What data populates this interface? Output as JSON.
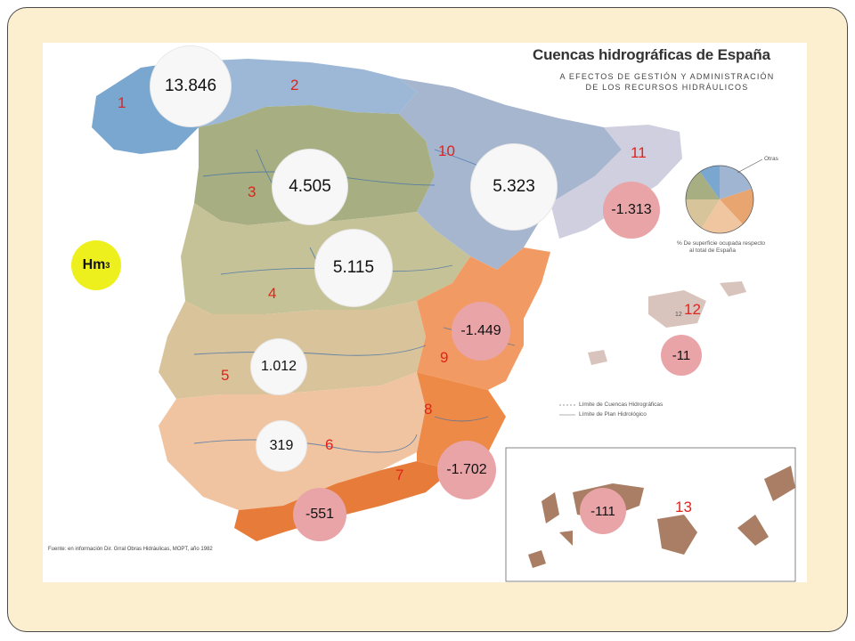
{
  "map": {
    "title": "Cuencas hidrográficas de España",
    "subtitle_line1": "A EFECTOS DE GESTIÓN Y ADMINISTRACIÓN",
    "subtitle_line2": "DE LOS RECURSOS HIDRÁULICOS",
    "unit_label": "Hm",
    "unit_exponent": "3",
    "basin_numbers": [
      "1",
      "2",
      "3",
      "4",
      "5",
      "6",
      "7",
      "8",
      "9",
      "10",
      "11",
      "12",
      "13"
    ],
    "island_label": "12",
    "values": {
      "b1": "13.846",
      "b3": "4.505",
      "b10": "5.323",
      "b11": "-1.313",
      "b4": "5.115",
      "b9": "-1.449",
      "b12": "-11",
      "b5": "1.012",
      "b6": "319",
      "b7": "-1.702",
      "b8": "-551",
      "b13": "-111"
    },
    "pie_legend": {
      "label": "Otras",
      "caption_line1": "% De superficie ocupada respecto",
      "caption_line2": "al total de España"
    },
    "legend": {
      "line1": "Límite de Cuencas Hidrográficas",
      "line2": "Límite de Plan Hidrológico"
    },
    "source": "Fuente: en información Dir. Grral Obras Hidráulicas, MOPT, año 1982",
    "colors": {
      "frame": "#fbefd0",
      "positive_bubble": "#f7f7f7",
      "negative_bubble": "#e9a4a8",
      "unit_bubble": "#eef01e",
      "basin_number": "#e0241b"
    }
  }
}
